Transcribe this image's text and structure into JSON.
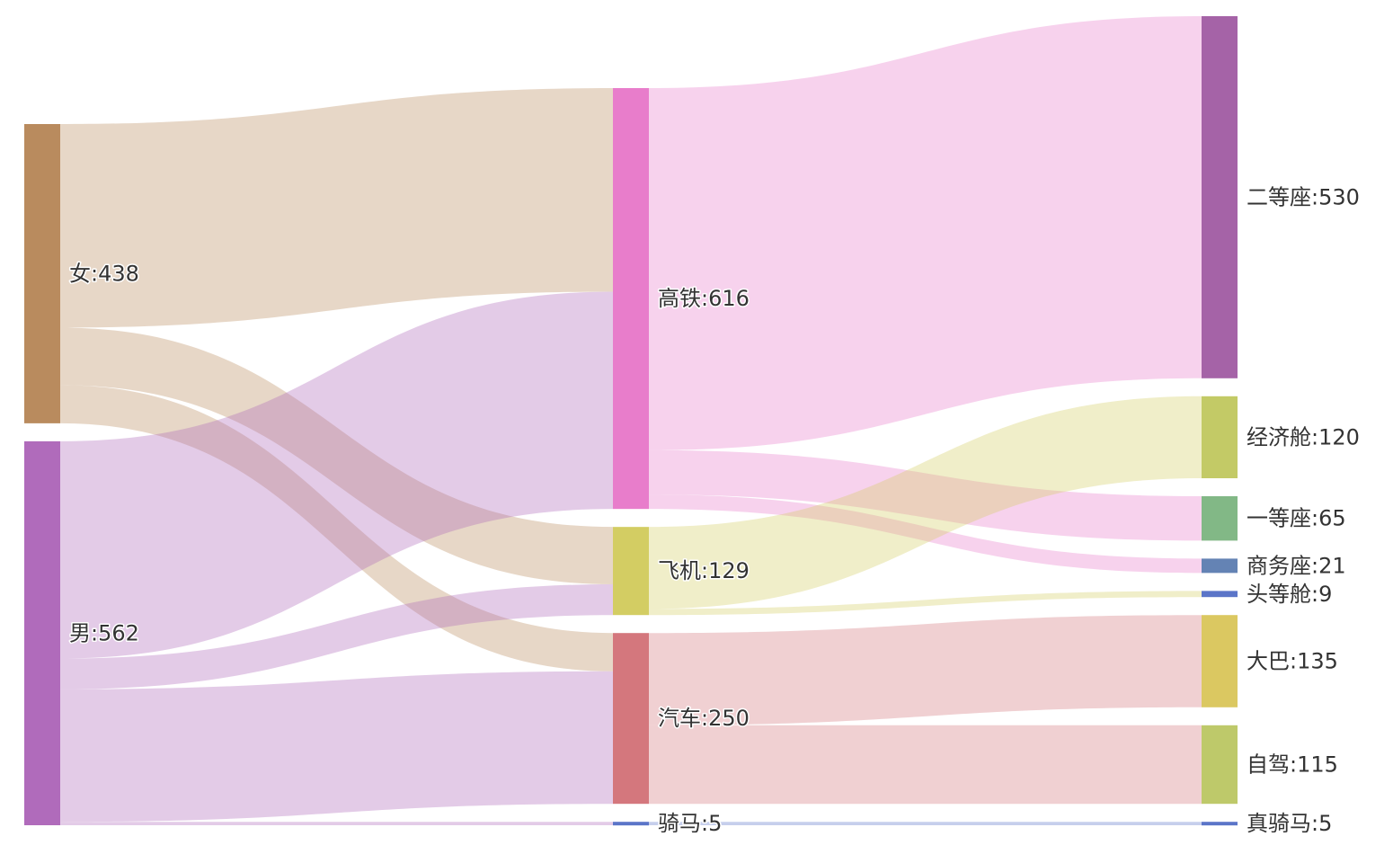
{
  "chart_data": {
    "type": "sankey",
    "nodes": [
      {
        "id": "女",
        "value": 438,
        "color": "#b98b5e"
      },
      {
        "id": "男",
        "value": 562,
        "color": "#b06bbb"
      },
      {
        "id": "高铁",
        "value": 616,
        "color": "#e87dcb"
      },
      {
        "id": "飞机",
        "value": 129,
        "color": "#d3cd63"
      },
      {
        "id": "汽车",
        "value": 250,
        "color": "#d4777d"
      },
      {
        "id": "骑马",
        "value": 5,
        "color": "#5b75c8"
      },
      {
        "id": "二等座",
        "value": 530,
        "color": "#a563a7"
      },
      {
        "id": "经济舱",
        "value": 120,
        "color": "#c3ca66"
      },
      {
        "id": "一等座",
        "value": 65,
        "color": "#82b886"
      },
      {
        "id": "商务座",
        "value": 21,
        "color": "#6483b4"
      },
      {
        "id": "头等舱",
        "value": 9,
        "color": "#5b75c8"
      },
      {
        "id": "大巴",
        "value": 135,
        "color": "#dbc861"
      },
      {
        "id": "自驾",
        "value": 115,
        "color": "#bec96a"
      },
      {
        "id": "真骑马",
        "value": 5,
        "color": "#5b75c8"
      }
    ],
    "links": [
      {
        "source": "女",
        "target": "高铁",
        "value": 298
      },
      {
        "source": "女",
        "target": "飞机",
        "value": 84
      },
      {
        "source": "女",
        "target": "汽车",
        "value": 56
      },
      {
        "source": "男",
        "target": "高铁",
        "value": 318
      },
      {
        "source": "男",
        "target": "飞机",
        "value": 45
      },
      {
        "source": "男",
        "target": "汽车",
        "value": 194
      },
      {
        "source": "男",
        "target": "骑马",
        "value": 5
      },
      {
        "source": "高铁",
        "target": "二等座",
        "value": 530
      },
      {
        "source": "高铁",
        "target": "一等座",
        "value": 65
      },
      {
        "source": "高铁",
        "target": "商务座",
        "value": 21
      },
      {
        "source": "飞机",
        "target": "经济舱",
        "value": 120
      },
      {
        "source": "飞机",
        "target": "头等舱",
        "value": 9
      },
      {
        "source": "汽车",
        "target": "大巴",
        "value": 135
      },
      {
        "source": "汽车",
        "target": "自驾",
        "value": 115
      },
      {
        "source": "骑马",
        "target": "真骑马",
        "value": 5
      }
    ]
  }
}
